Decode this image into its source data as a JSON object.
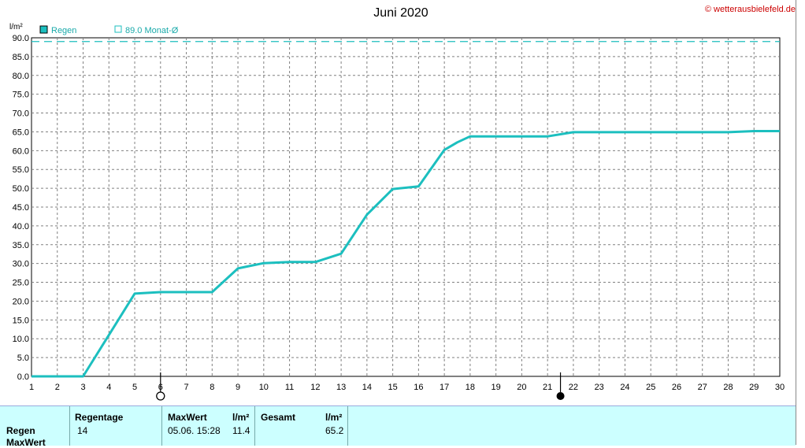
{
  "title": "Juni 2020",
  "copyright": "© wetterausbielefeld.de",
  "unit_label": "l/m²",
  "legend": {
    "series_label": "Regen",
    "reference_label": "89.0 Monat-Ø"
  },
  "colors": {
    "series": "#1cbfbf",
    "reference": "#1cbfbf",
    "grid": "#808080",
    "panel": "#ccffff"
  },
  "chart_data": {
    "type": "line",
    "title": "Juni 2020",
    "ylabel": "l/m²",
    "xlim": [
      1,
      30
    ],
    "ylim": [
      0,
      90
    ],
    "x_ticks": [
      "1",
      "2",
      "3",
      "4",
      "5",
      "6",
      "7",
      "8",
      "9",
      "10",
      "11",
      "12",
      "13",
      "14",
      "15",
      "16",
      "17",
      "18",
      "19",
      "20",
      "21",
      "22",
      "23",
      "24",
      "25",
      "26",
      "27",
      "28",
      "29",
      "30"
    ],
    "y_ticks": [
      "0.0",
      "5.0",
      "10.0",
      "15.0",
      "20.0",
      "25.0",
      "30.0",
      "35.0",
      "40.0",
      "45.0",
      "50.0",
      "55.0",
      "60.0",
      "65.0",
      "70.0",
      "75.0",
      "80.0",
      "85.0",
      "90.0"
    ],
    "reference_value": 89.0,
    "grid": true,
    "series": [
      {
        "name": "Regen",
        "x": [
          1,
          2,
          3,
          4,
          5,
          6,
          7,
          8,
          9,
          10,
          11,
          12,
          13,
          14,
          15,
          16,
          17,
          17.5,
          18,
          19,
          20,
          21,
          22,
          23,
          24,
          25,
          26,
          27,
          28,
          29,
          30
        ],
        "values": [
          0,
          0,
          0,
          11.0,
          22.0,
          22.4,
          22.4,
          22.4,
          28.7,
          30.1,
          30.4,
          30.4,
          32.6,
          43.0,
          49.8,
          50.5,
          60.2,
          62.2,
          63.8,
          63.8,
          63.8,
          63.8,
          64.9,
          64.9,
          64.9,
          64.9,
          64.9,
          64.9,
          64.9,
          65.2,
          65.2
        ]
      }
    ],
    "moon_phases": [
      {
        "day": 6,
        "phase": "full-moon"
      },
      {
        "day": 21.5,
        "phase": "new-moon"
      }
    ]
  },
  "stats": {
    "row_labels": [
      "Regen",
      "MaxWert"
    ],
    "col_regentage_header": "Regentage",
    "col_regentage_value": "14",
    "col_maxwert_header": "MaxWert",
    "col_maxwert_unit": "l/m²",
    "col_maxwert_date": "05.06.  15:28",
    "col_maxwert_value": "11.4",
    "col_gesamt_header": "Gesamt",
    "col_gesamt_unit": "l/m²",
    "col_gesamt_value": "65.2"
  }
}
